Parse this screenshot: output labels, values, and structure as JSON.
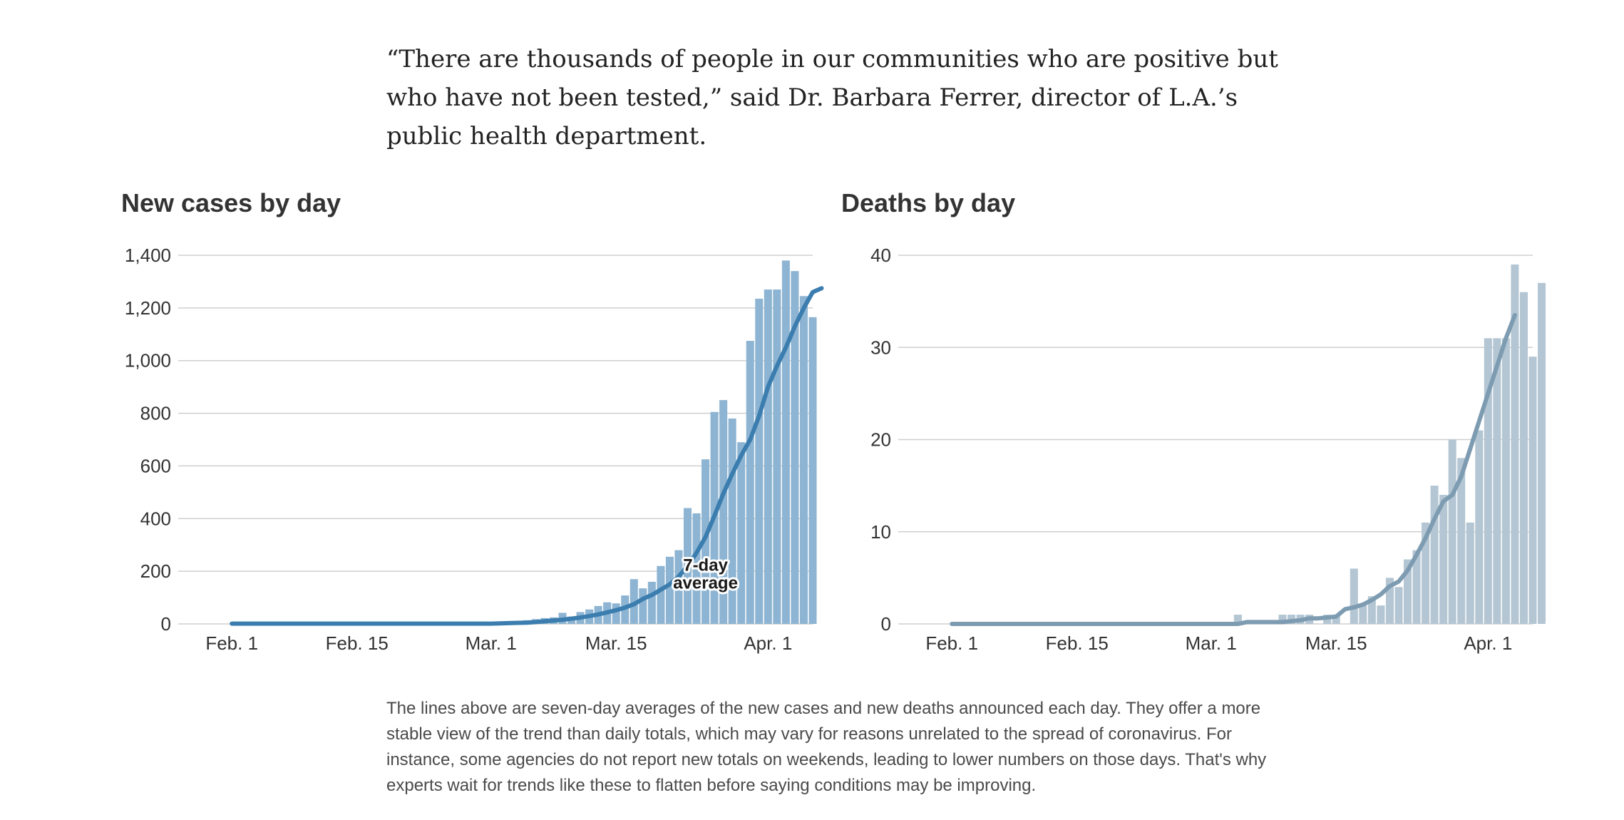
{
  "quote": "“There are thousands of people in our communities who are positive but who have not been tested,” said Dr. Barbara Ferrer, director of L.A.’s public health department.",
  "footnote": "The lines above are seven-day averages of the new cases and new deaths announced each day. They offer a more stable view of the trend than daily totals, which may vary for reasons unrelated to the spread of coronavirus. For instance, some agencies do not report new totals on weekends, leading to lower numbers on those days. That's why experts wait for trends like these to flatten before saying conditions may be improving.",
  "colors": {
    "cases_bar": "#8db4d2",
    "cases_line": "#3a7dae",
    "deaths_bar": "#b4c6d3",
    "deaths_line": "#7d9bb1"
  },
  "chart_data": [
    {
      "type": "bar",
      "title": "New cases by day",
      "x_tick_labels": [
        "Feb. 1",
        "Feb. 15",
        "Mar. 1",
        "Mar. 15",
        "Apr. 1"
      ],
      "x_tick_dates": [
        "2020-02-01",
        "2020-02-15",
        "2020-03-01",
        "2020-03-15",
        "2020-04-01"
      ],
      "x_range": [
        "2020-01-26",
        "2020-04-06"
      ],
      "ylim": [
        0,
        1400
      ],
      "y_ticks": [
        0,
        200,
        400,
        600,
        800,
        1000,
        1200,
        1400
      ],
      "y_tick_labels": [
        "0",
        "200",
        "400",
        "600",
        "800",
        "1,000",
        "1,200",
        "1,400"
      ],
      "grid": true,
      "annotation": {
        "line1": "7-day",
        "line2": "average",
        "date": "2020-03-25",
        "value": 180
      },
      "series": [
        {
          "name": "New cases",
          "mark": "bar",
          "start_date": "2020-03-01",
          "values": [
            2,
            4,
            6,
            10,
            14,
            18,
            22,
            25,
            42,
            28,
            45,
            55,
            68,
            82,
            78,
            108,
            170,
            135,
            160,
            220,
            255,
            280,
            440,
            420,
            625,
            805,
            850,
            780,
            690,
            1075,
            1235,
            1270,
            1270,
            1380,
            1340,
            1245,
            1165
          ]
        },
        {
          "name": "7-day average",
          "mark": "line",
          "start_date": "2020-02-01",
          "values": [
            1,
            1,
            1,
            1,
            1,
            1,
            1,
            1,
            1,
            1,
            1,
            1,
            1,
            1,
            1,
            1,
            1,
            1,
            1,
            1,
            1,
            1,
            1,
            1,
            1,
            1,
            1,
            1,
            1,
            1,
            2,
            3,
            4,
            5,
            7,
            10,
            13,
            16,
            20,
            24,
            30,
            36,
            44,
            52,
            62,
            75,
            95,
            110,
            130,
            150,
            180,
            220,
            270,
            330,
            410,
            495,
            570,
            640,
            700,
            790,
            900,
            980,
            1050,
            1130,
            1200,
            1260,
            1275
          ]
        }
      ]
    },
    {
      "type": "bar",
      "title": "Deaths by day",
      "x_tick_labels": [
        "Feb. 1",
        "Feb. 15",
        "Mar. 1",
        "Mar. 15",
        "Apr. 1"
      ],
      "x_tick_dates": [
        "2020-02-01",
        "2020-02-15",
        "2020-03-01",
        "2020-03-15",
        "2020-04-01"
      ],
      "x_range": [
        "2020-01-26",
        "2020-04-06"
      ],
      "ylim": [
        0,
        40
      ],
      "y_ticks": [
        0,
        10,
        20,
        30,
        40
      ],
      "y_tick_labels": [
        "0",
        "10",
        "20",
        "30",
        "40"
      ],
      "grid": true,
      "series": [
        {
          "name": "New deaths",
          "mark": "bar",
          "start_date": "2020-03-04",
          "values": [
            1,
            0,
            0,
            0,
            0,
            1,
            1,
            1,
            1,
            0,
            1,
            1,
            0,
            6,
            2,
            3,
            2,
            5,
            4,
            7,
            8,
            11,
            15,
            14,
            20,
            18,
            11,
            21,
            31,
            31,
            31,
            39,
            36,
            29,
            37
          ]
        },
        {
          "name": "7-day average",
          "mark": "line",
          "start_date": "2020-02-01",
          "values": [
            0,
            0,
            0,
            0,
            0,
            0,
            0,
            0,
            0,
            0,
            0,
            0,
            0,
            0,
            0,
            0,
            0,
            0,
            0,
            0,
            0,
            0,
            0,
            0,
            0,
            0,
            0,
            0,
            0,
            0,
            0,
            0,
            0,
            0.2,
            0.2,
            0.2,
            0.2,
            0.2,
            0.3,
            0.4,
            0.6,
            0.6,
            0.7,
            0.8,
            1.6,
            1.8,
            2.1,
            2.6,
            3.2,
            4.1,
            4.6,
            5.8,
            7.5,
            9.3,
            11.4,
            13.3,
            14.0,
            16.0,
            19.0,
            22.0,
            25.0,
            28.0,
            31.0,
            33.5
          ]
        }
      ]
    }
  ]
}
